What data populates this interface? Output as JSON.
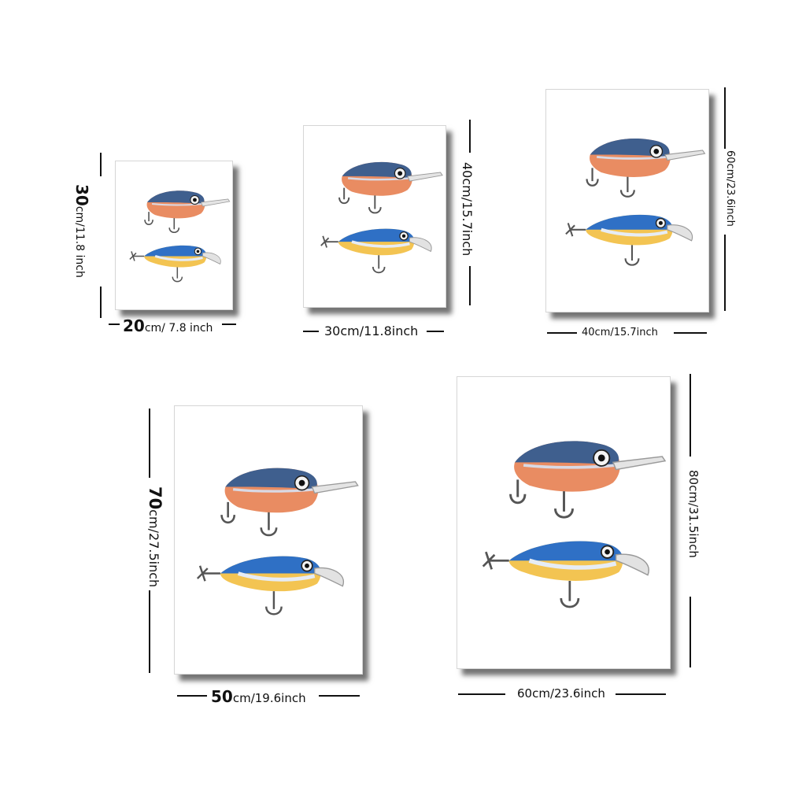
{
  "sizes": [
    {
      "width_num": "20",
      "width_unit": "cm/ 7.8 inch",
      "height_num": "30",
      "height_unit": "cm/11.8 inch"
    },
    {
      "width_text": "30cm/11.8inch",
      "height_text": "40cm/15.7inch"
    },
    {
      "width_text": "40cm/15.7inch",
      "height_text": "60cm/23.6inch"
    },
    {
      "width_num": "50",
      "width_unit": "cm/19.6inch",
      "height_num": "70",
      "height_unit": "cm/27.5inch"
    },
    {
      "width_text": "60cm/23.6inch",
      "height_text": "80cm/31.5inch"
    }
  ],
  "artwork": {
    "subject": "two fishing crankbait lures",
    "colors": {
      "back_blue": "#3e5f8f",
      "belly_orange": "#e88a5e",
      "lure2_blue": "#2e6fc4",
      "lure2_yellow": "#f2c24e",
      "hook": "#555555"
    }
  }
}
